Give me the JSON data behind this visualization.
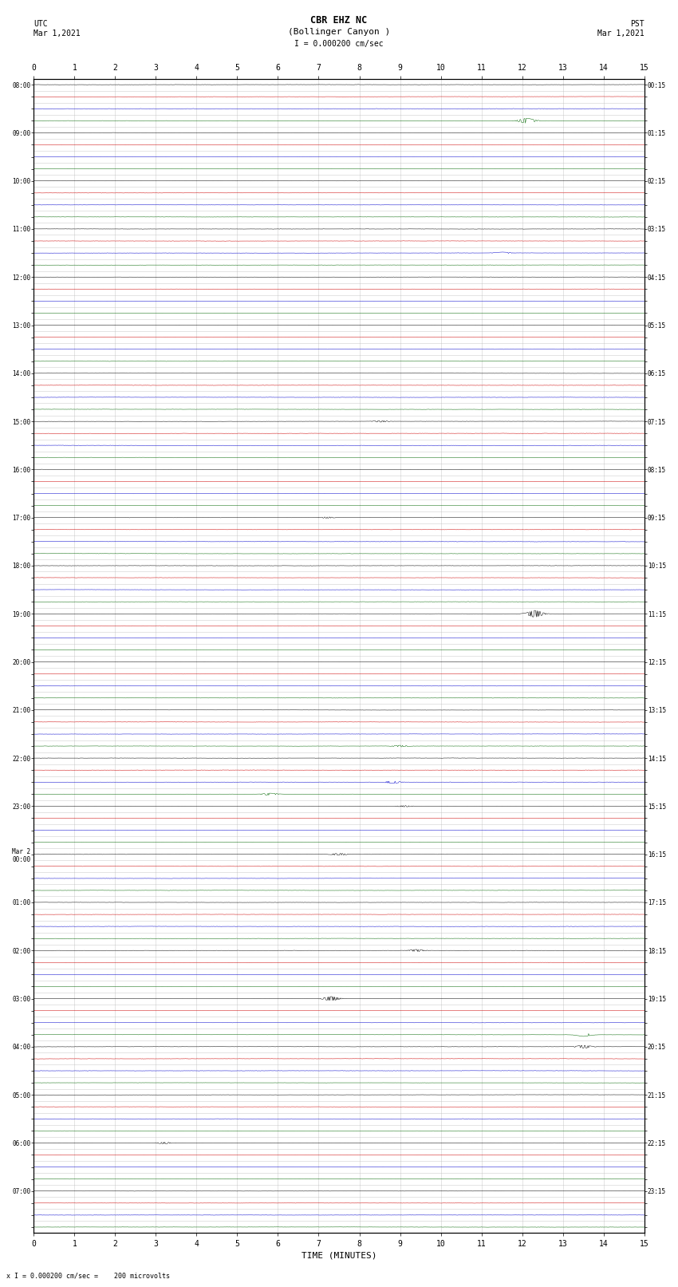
{
  "title_line1": "CBR EHZ NC",
  "title_line2": "(Bollinger Canyon )",
  "scale_label": "I = 0.000200 cm/sec",
  "bottom_label": "x I = 0.000200 cm/sec =    200 microvolts",
  "xlabel": "TIME (MINUTES)",
  "left_header_line1": "UTC",
  "left_header_line2": "Mar 1,2021",
  "right_header_line1": "PST",
  "right_header_line2": "Mar 1,2021",
  "xlim": [
    0,
    15
  ],
  "bg_color": "#ffffff",
  "trace_colors": [
    "#000000",
    "#cc0000",
    "#0000cc",
    "#006600"
  ],
  "grid_color": "#bbbbbb",
  "num_rows": 96,
  "utc_labels": [
    "08:00",
    "",
    "",
    "",
    "09:00",
    "",
    "",
    "",
    "10:00",
    "",
    "",
    "",
    "11:00",
    "",
    "",
    "",
    "12:00",
    "",
    "",
    "",
    "13:00",
    "",
    "",
    "",
    "14:00",
    "",
    "",
    "",
    "15:00",
    "",
    "",
    "",
    "16:00",
    "",
    "",
    "",
    "17:00",
    "",
    "",
    "",
    "18:00",
    "",
    "",
    "",
    "19:00",
    "",
    "",
    "",
    "20:00",
    "",
    "",
    "",
    "21:00",
    "",
    "",
    "",
    "22:00",
    "",
    "",
    "",
    "23:00",
    "",
    "",
    "",
    "Mar 2\n00:00",
    "",
    "",
    "",
    "01:00",
    "",
    "",
    "",
    "02:00",
    "",
    "",
    "",
    "03:00",
    "",
    "",
    "",
    "04:00",
    "",
    "",
    "",
    "05:00",
    "",
    "",
    "",
    "06:00",
    "",
    "",
    "",
    "07:00",
    "",
    "",
    ""
  ],
  "pst_labels": [
    "00:15",
    "",
    "",
    "",
    "01:15",
    "",
    "",
    "",
    "02:15",
    "",
    "",
    "",
    "03:15",
    "",
    "",
    "",
    "04:15",
    "",
    "",
    "",
    "05:15",
    "",
    "",
    "",
    "06:15",
    "",
    "",
    "",
    "07:15",
    "",
    "",
    "",
    "08:15",
    "",
    "",
    "",
    "09:15",
    "",
    "",
    "",
    "10:15",
    "",
    "",
    "",
    "11:15",
    "",
    "",
    "",
    "12:15",
    "",
    "",
    "",
    "13:15",
    "",
    "",
    "",
    "14:15",
    "",
    "",
    "",
    "15:15",
    "",
    "",
    "",
    "16:15",
    "",
    "",
    "",
    "17:15",
    "",
    "",
    "",
    "18:15",
    "",
    "",
    "",
    "19:15",
    "",
    "",
    "",
    "20:15",
    "",
    "",
    "",
    "21:15",
    "",
    "",
    "",
    "22:15",
    "",
    "",
    "",
    "23:15",
    "",
    "",
    ""
  ],
  "noise_amplitude": 0.018,
  "seed": 42,
  "num_samples": 900
}
